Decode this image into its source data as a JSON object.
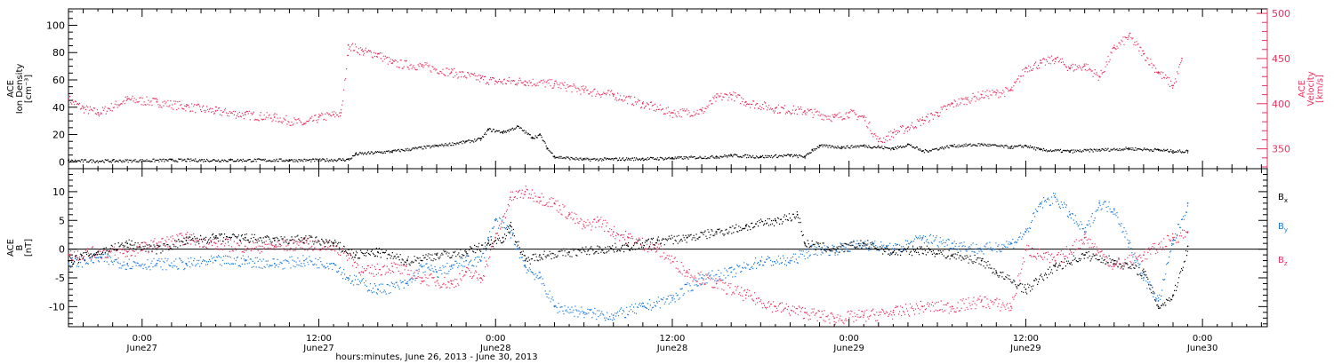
{
  "x_axis": {
    "title": "hours:minutes, June 26, 2013 - June 30, 2013",
    "ticks": [
      {
        "t": 24,
        "time": "0:00",
        "day": "June27"
      },
      {
        "t": 36,
        "time": "12:00",
        "day": "June27"
      },
      {
        "t": 48,
        "time": "0:00",
        "day": "June28"
      },
      {
        "t": 60,
        "time": "12:00",
        "day": "June28"
      },
      {
        "t": 72,
        "time": "0:00",
        "day": "June29"
      },
      {
        "t": 84,
        "time": "12:00",
        "day": "June29"
      },
      {
        "t": 96,
        "time": "0:00",
        "day": "June30"
      }
    ]
  },
  "chart_data": [
    {
      "type": "scatter",
      "panel": "top",
      "xlabel": "hours:minutes, June 26, 2013 - June 30, 2013",
      "xlim_hours_from_june26_0000": [
        19,
        100.4
      ],
      "left_axis": {
        "label_lines": [
          "ACE",
          "Ion Density",
          "[cm⁻³]"
        ],
        "ylim": [
          -5,
          112
        ],
        "ticks": [
          0,
          20,
          40,
          60,
          80,
          100
        ]
      },
      "right_axis": {
        "label_lines": [
          "ACE",
          "Velocity",
          "[km/s]"
        ],
        "ylim": [
          328,
          505
        ],
        "ticks": [
          350,
          400,
          450,
          500
        ],
        "color": "#e8325f"
      },
      "series": [
        {
          "name": "Ion Density",
          "axis": "left",
          "color": "#000000",
          "points": [
            [
              19,
              1
            ],
            [
              22,
              1
            ],
            [
              26,
              1.5
            ],
            [
              30,
              1.5
            ],
            [
              34,
              1.5
            ],
            [
              36,
              1.5
            ],
            [
              38,
              2
            ],
            [
              38.5,
              6
            ],
            [
              41,
              8
            ],
            [
              44,
              12
            ],
            [
              46,
              15
            ],
            [
              47,
              17
            ],
            [
              47.5,
              24
            ],
            [
              48.5,
              22
            ],
            [
              49.5,
              26
            ],
            [
              50.5,
              18
            ],
            [
              51,
              20
            ],
            [
              51.5,
              10
            ],
            [
              52,
              4
            ],
            [
              54,
              2
            ],
            [
              58,
              2.5
            ],
            [
              60,
              3
            ],
            [
              63,
              4
            ],
            [
              64,
              5
            ],
            [
              66,
              4
            ],
            [
              68,
              5
            ],
            [
              69,
              4
            ],
            [
              69.5,
              9
            ],
            [
              70,
              12
            ],
            [
              71.5,
              11
            ],
            [
              73,
              12
            ],
            [
              75,
              10
            ],
            [
              76,
              13
            ],
            [
              77,
              8
            ],
            [
              79,
              12
            ],
            [
              81,
              13
            ],
            [
              83,
              11
            ],
            [
              84,
              12
            ],
            [
              85,
              9
            ],
            [
              87,
              8
            ],
            [
              89,
              9
            ],
            [
              91,
              10
            ],
            [
              93,
              9
            ],
            [
              94,
              8
            ],
            [
              95,
              8
            ]
          ]
        },
        {
          "name": "Velocity",
          "axis": "right",
          "color": "#e8325f",
          "points": [
            [
              19,
              405
            ],
            [
              20,
              395
            ],
            [
              21,
              390
            ],
            [
              23,
              405
            ],
            [
              25,
              402
            ],
            [
              27,
              397
            ],
            [
              29,
              392
            ],
            [
              31,
              388
            ],
            [
              33,
              385
            ],
            [
              35,
              378
            ],
            [
              36,
              385
            ],
            [
              37,
              388
            ],
            [
              37.5,
              390
            ],
            [
              38,
              465
            ],
            [
              39,
              458
            ],
            [
              40,
              455
            ],
            [
              41,
              445
            ],
            [
              43,
              442
            ],
            [
              45,
              435
            ],
            [
              47,
              428
            ],
            [
              48,
              425
            ],
            [
              50,
              425
            ],
            [
              52,
              422
            ],
            [
              54,
              415
            ],
            [
              56,
              410
            ],
            [
              58,
              400
            ],
            [
              60,
              390
            ],
            [
              62,
              392
            ],
            [
              63,
              407
            ],
            [
              64,
              410
            ],
            [
              65,
              402
            ],
            [
              67,
              395
            ],
            [
              69,
              392
            ],
            [
              71,
              385
            ],
            [
              72,
              390
            ],
            [
              73,
              385
            ],
            [
              74,
              358
            ],
            [
              75,
              368
            ],
            [
              76,
              374
            ],
            [
              77,
              382
            ],
            [
              78,
              390
            ],
            [
              79,
              400
            ],
            [
              80,
              405
            ],
            [
              81,
              410
            ],
            [
              82,
              412
            ],
            [
              83,
              415
            ],
            [
              84,
              440
            ],
            [
              85,
              445
            ],
            [
              86,
              450
            ],
            [
              87,
              440
            ],
            [
              88,
              442
            ],
            [
              89,
              430
            ],
            [
              90,
              462
            ],
            [
              91,
              475
            ],
            [
              92,
              455
            ],
            [
              93,
              435
            ],
            [
              94,
              420
            ],
            [
              94.6,
              450
            ]
          ]
        }
      ]
    },
    {
      "type": "scatter",
      "panel": "bottom",
      "xlabel": "hours:minutes, June 26, 2013 - June 30, 2013",
      "left_axis": {
        "label_lines": [
          "ACE",
          "B",
          "[nT]"
        ],
        "ylim": [
          -13.5,
          14
        ],
        "ticks": [
          -10,
          -5,
          0,
          5,
          10
        ]
      },
      "legend_position": "right",
      "series": [
        {
          "name": "Bx",
          "color": "#000000",
          "points": [
            [
              19,
              -2
            ],
            [
              21,
              -0.5
            ],
            [
              23,
              1
            ],
            [
              25,
              0
            ],
            [
              27,
              1.5
            ],
            [
              29,
              2
            ],
            [
              31,
              2
            ],
            [
              33,
              1.5
            ],
            [
              35,
              1.8
            ],
            [
              37,
              1
            ],
            [
              38.5,
              -1
            ],
            [
              40,
              -0.5
            ],
            [
              42,
              -2
            ],
            [
              44,
              -1
            ],
            [
              46,
              -0.5
            ],
            [
              47.5,
              1
            ],
            [
              48.5,
              2
            ],
            [
              49,
              4
            ],
            [
              50,
              -2
            ],
            [
              51,
              -1
            ],
            [
              53,
              -0.5
            ],
            [
              55,
              0
            ],
            [
              57,
              0.5
            ],
            [
              59,
              1.5
            ],
            [
              61,
              2
            ],
            [
              63,
              3
            ],
            [
              65,
              4
            ],
            [
              67,
              5
            ],
            [
              68.5,
              6
            ],
            [
              69,
              1
            ],
            [
              71,
              0
            ],
            [
              73,
              1
            ],
            [
              75,
              -0.5
            ],
            [
              77,
              0
            ],
            [
              79,
              -1
            ],
            [
              81,
              -2
            ],
            [
              82,
              -4
            ],
            [
              84,
              -7
            ],
            [
              86,
              -3
            ],
            [
              88,
              -1
            ],
            [
              90,
              -2
            ],
            [
              92,
              -4
            ],
            [
              93,
              -10
            ],
            [
              94,
              -8
            ],
            [
              95,
              0.5
            ]
          ]
        },
        {
          "name": "By",
          "color": "#1a78dc",
          "points": [
            [
              19,
              -2.5
            ],
            [
              21,
              -1.5
            ],
            [
              23,
              -2.5
            ],
            [
              25,
              -2.5
            ],
            [
              27,
              -2.5
            ],
            [
              29,
              -2
            ],
            [
              31,
              -2
            ],
            [
              33,
              -2.5
            ],
            [
              35,
              -2
            ],
            [
              37,
              -2.5
            ],
            [
              38,
              -5
            ],
            [
              40,
              -7
            ],
            [
              42,
              -6
            ],
            [
              43,
              -3
            ],
            [
              44,
              -4
            ],
            [
              45,
              -3
            ],
            [
              46,
              -2
            ],
            [
              47,
              -2
            ],
            [
              47.5,
              2
            ],
            [
              48,
              5
            ],
            [
              49,
              3
            ],
            [
              50,
              -3
            ],
            [
              51,
              -5
            ],
            [
              52,
              -10
            ],
            [
              54,
              -11
            ],
            [
              56,
              -11.5
            ],
            [
              58,
              -10
            ],
            [
              60,
              -8.5
            ],
            [
              62,
              -5
            ],
            [
              64,
              -4
            ],
            [
              66,
              -2
            ],
            [
              68,
              -2
            ],
            [
              69.5,
              0
            ],
            [
              71,
              0
            ],
            [
              73,
              1
            ],
            [
              75,
              0
            ],
            [
              77,
              2
            ],
            [
              79,
              1
            ],
            [
              81,
              0
            ],
            [
              83,
              1
            ],
            [
              84,
              3
            ],
            [
              85,
              8
            ],
            [
              86,
              9
            ],
            [
              87,
              6
            ],
            [
              88,
              3
            ],
            [
              89,
              8
            ],
            [
              90,
              7
            ],
            [
              91,
              1
            ],
            [
              92,
              -5
            ],
            [
              93,
              -9
            ],
            [
              94,
              1.5
            ],
            [
              95,
              8
            ]
          ]
        },
        {
          "name": "Bz",
          "color": "#e8325f",
          "points": [
            [
              19,
              -1
            ],
            [
              21,
              -0.5
            ],
            [
              23,
              -0.5
            ],
            [
              25,
              1
            ],
            [
              27,
              2
            ],
            [
              29,
              1
            ],
            [
              31,
              0.5
            ],
            [
              33,
              0.5
            ],
            [
              35,
              1
            ],
            [
              37,
              0.5
            ],
            [
              38,
              -1
            ],
            [
              39,
              -4
            ],
            [
              41,
              -3
            ],
            [
              43,
              -5
            ],
            [
              45,
              -6
            ],
            [
              46,
              -4
            ],
            [
              47,
              -5
            ],
            [
              48,
              2
            ],
            [
              49,
              9
            ],
            [
              50,
              10
            ],
            [
              51,
              9
            ],
            [
              52,
              8
            ],
            [
              53,
              6
            ],
            [
              54,
              4
            ],
            [
              55,
              5
            ],
            [
              56,
              3
            ],
            [
              57,
              2
            ],
            [
              59,
              0
            ],
            [
              61,
              -4
            ],
            [
              63,
              -6
            ],
            [
              65,
              -8
            ],
            [
              67,
              -10
            ],
            [
              69,
              -11
            ],
            [
              71,
              -12
            ],
            [
              73,
              -11.5
            ],
            [
              75,
              -11
            ],
            [
              77,
              -10
            ],
            [
              79,
              -10
            ],
            [
              81,
              -9
            ],
            [
              83,
              -10
            ],
            [
              84,
              0
            ],
            [
              86,
              -2
            ],
            [
              88,
              2
            ],
            [
              90,
              -3
            ],
            [
              92,
              -1
            ],
            [
              94,
              2
            ],
            [
              95,
              3
            ]
          ]
        }
      ]
    }
  ]
}
